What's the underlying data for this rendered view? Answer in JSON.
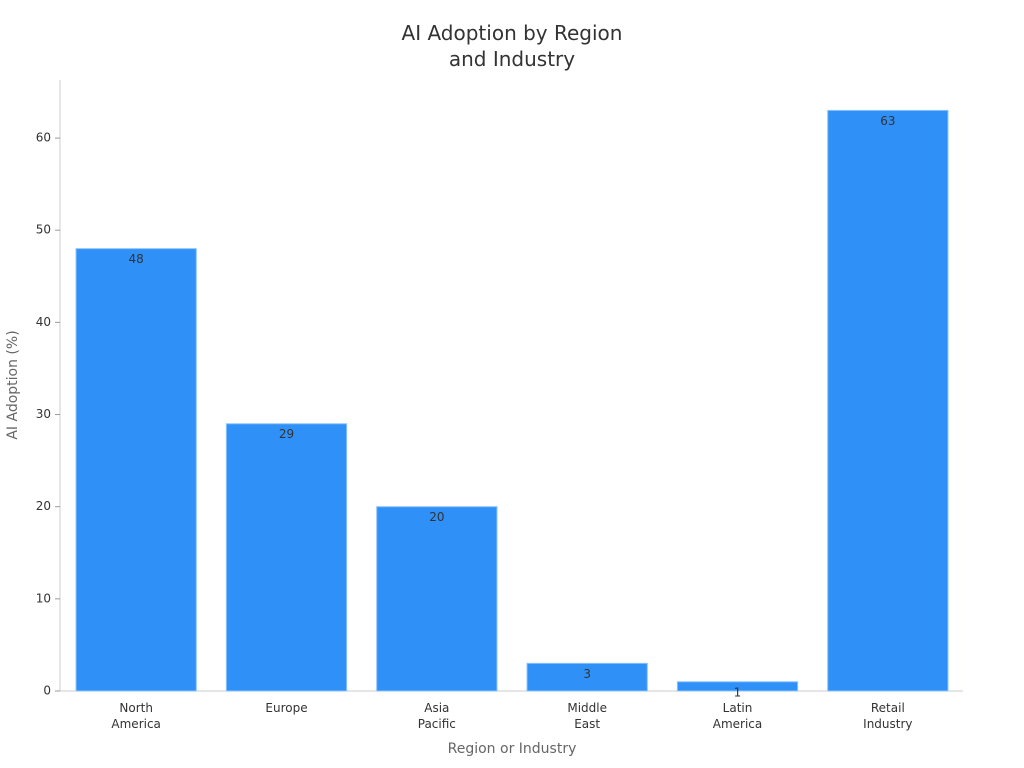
{
  "chart_data": {
    "type": "bar",
    "title": "AI Adoption by Region\nand Industry",
    "x_label": "Region or Industry",
    "y_label": "AI Adoption (%)",
    "categories": [
      "North\nAmerica",
      "Europe",
      "Asia\nPacific",
      "Middle\nEast",
      "Latin\nAmerica",
      "Retail\nIndustry"
    ],
    "values": [
      48,
      29,
      20,
      3,
      1,
      63
    ],
    "color": "#2f91f8",
    "ylim": [
      0,
      66.3
    ],
    "yticks": [
      0,
      10,
      20,
      30,
      40,
      50,
      60
    ],
    "grid": false
  }
}
